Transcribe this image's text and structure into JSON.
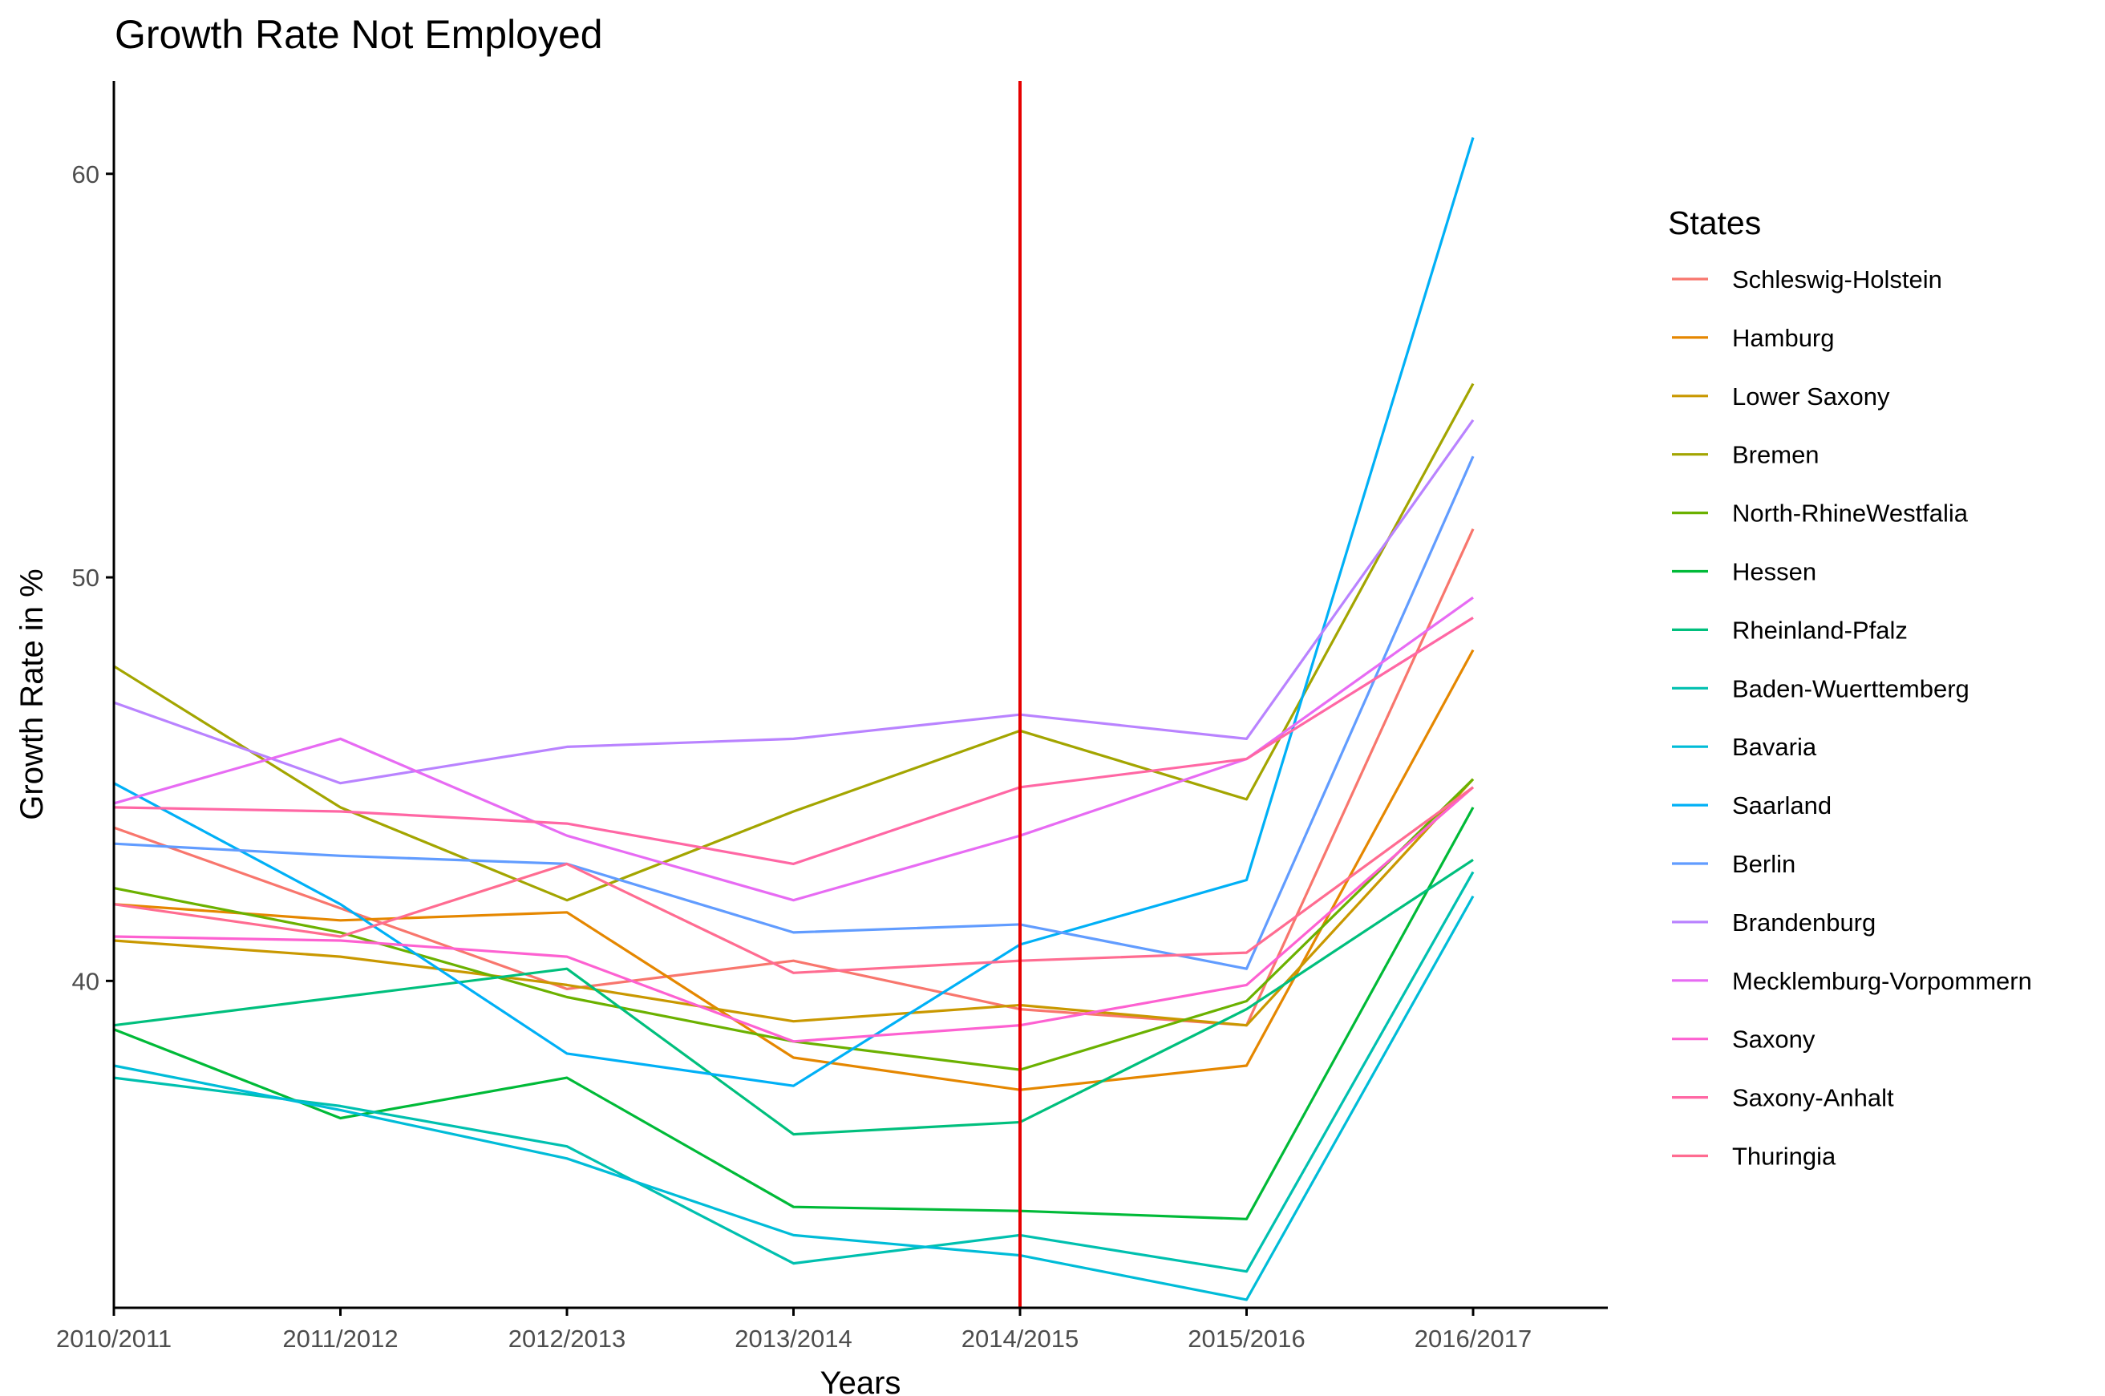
{
  "chart_data": {
    "type": "line",
    "title": "Growth Rate Not Employed",
    "xlabel": "Years",
    "ylabel": "Growth Rate in %",
    "categories": [
      "2010/2011",
      "2011/2012",
      "2012/2013",
      "2013/2014",
      "2014/2015",
      "2015/2016",
      "2016/2017"
    ],
    "ylim": [
      31.9,
      62.3
    ],
    "yticks": [
      40,
      50,
      60
    ],
    "grid": false,
    "legend_position": "right",
    "legend_title": "States",
    "reference_line": {
      "x": "2014/2015",
      "color": "#e60000"
    },
    "series": [
      {
        "name": "Schleswig-Holstein",
        "color": "#F8766D",
        "values": [
          43.8,
          41.8,
          39.8,
          40.5,
          39.3,
          38.9,
          51.2
        ]
      },
      {
        "name": "Hamburg",
        "color": "#E58700",
        "values": [
          41.9,
          41.5,
          41.7,
          38.1,
          37.3,
          37.9,
          48.2
        ]
      },
      {
        "name": "Lower Saxony",
        "color": "#C99800",
        "values": [
          41.0,
          40.6,
          39.9,
          39.0,
          39.4,
          38.9,
          45.0
        ]
      },
      {
        "name": "Bremen",
        "color": "#A3A500",
        "values": [
          47.8,
          44.3,
          42.0,
          44.2,
          46.2,
          44.5,
          54.8
        ]
      },
      {
        "name": "North-RhineWestfalia",
        "color": "#6BB100",
        "values": [
          42.3,
          41.2,
          39.6,
          38.5,
          37.8,
          39.5,
          45.0
        ]
      },
      {
        "name": "Hessen",
        "color": "#00BA38",
        "values": [
          38.8,
          36.6,
          37.6,
          34.4,
          34.3,
          34.1,
          44.3
        ]
      },
      {
        "name": "Rheinland-Pfalz",
        "color": "#00BF7D",
        "values": [
          38.9,
          39.6,
          40.3,
          36.2,
          36.5,
          39.3,
          43.0
        ]
      },
      {
        "name": "Baden-Wuerttemberg",
        "color": "#00C0AF",
        "values": [
          37.6,
          36.9,
          35.9,
          33.0,
          33.7,
          32.8,
          42.7
        ]
      },
      {
        "name": "Bavaria",
        "color": "#00BCD8",
        "values": [
          37.9,
          36.8,
          35.6,
          33.7,
          33.2,
          32.1,
          42.1
        ]
      },
      {
        "name": "Saarland",
        "color": "#00B0F6",
        "values": [
          44.9,
          41.9,
          38.2,
          37.4,
          40.9,
          42.5,
          60.9
        ]
      },
      {
        "name": "Berlin",
        "color": "#619CFF",
        "values": [
          43.4,
          43.1,
          42.9,
          41.2,
          41.4,
          40.3,
          53.0
        ]
      },
      {
        "name": "Brandenburg",
        "color": "#B983FF",
        "values": [
          46.9,
          44.9,
          45.8,
          46.0,
          46.6,
          46.0,
          53.9
        ]
      },
      {
        "name": "Mecklemburg-Vorpommern",
        "color": "#E76BF3",
        "values": [
          44.4,
          46.0,
          43.6,
          42.0,
          43.6,
          45.5,
          49.5
        ]
      },
      {
        "name": "Saxony",
        "color": "#FD61D1",
        "values": [
          41.1,
          41.0,
          40.6,
          38.5,
          38.9,
          39.9,
          44.8
        ]
      },
      {
        "name": "Saxony-Anhalt",
        "color": "#FF67A4",
        "values": [
          44.3,
          44.2,
          43.9,
          42.9,
          44.8,
          45.5,
          49.0
        ]
      },
      {
        "name": "Thuringia",
        "color": "#FF6C91",
        "values": [
          41.9,
          41.1,
          42.9,
          40.2,
          40.5,
          40.7,
          44.8
        ]
      }
    ]
  }
}
